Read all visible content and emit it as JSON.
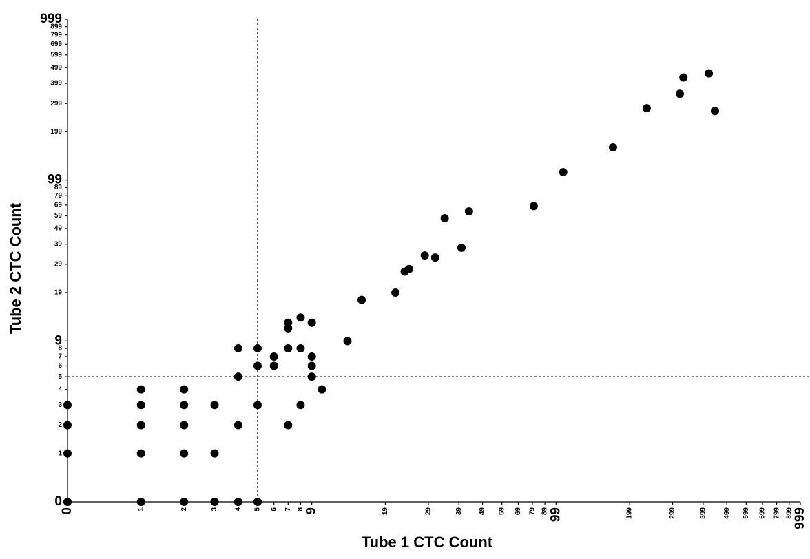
{
  "chart_data": {
    "type": "scatter",
    "x_label": "Tube 1 CTC Count",
    "y_label": "Tube 2 CTC Count",
    "scale": "log1p",
    "color": "#000000",
    "x": [
      0,
      0,
      0,
      0,
      1,
      1,
      1,
      1,
      1,
      2,
      2,
      2,
      2,
      2,
      3,
      3,
      3,
      4,
      4,
      4,
      4,
      5,
      5,
      5,
      5,
      6,
      6,
      7,
      7,
      7,
      7,
      8,
      8,
      8,
      9,
      9,
      9,
      9,
      10,
      13,
      15,
      21,
      23,
      24,
      28,
      31,
      34,
      40,
      43,
      80,
      106,
      170,
      234,
      320,
      331,
      421,
      446
    ],
    "values": [
      3,
      2,
      1,
      0,
      4,
      3,
      2,
      1,
      0,
      4,
      3,
      2,
      1,
      0,
      3,
      1,
      0,
      8,
      5,
      2,
      0,
      8,
      6,
      3,
      0,
      7,
      6,
      12,
      11,
      8,
      2,
      13,
      8,
      3,
      12,
      7,
      6,
      5,
      4,
      9,
      17,
      19,
      26,
      27,
      33,
      32,
      57,
      37,
      63,
      68,
      111,
      159,
      279,
      343,
      434,
      460,
      268
    ],
    "xlim": [
      0,
      999
    ],
    "ylim": [
      0,
      999
    ],
    "xticks": [
      0,
      1,
      2,
      3,
      4,
      5,
      6,
      7,
      8,
      9,
      19,
      29,
      39,
      49,
      59,
      69,
      79,
      89,
      99,
      199,
      299,
      399,
      499,
      599,
      699,
      799,
      899,
      999
    ],
    "yticks": [
      0,
      1,
      2,
      3,
      4,
      5,
      6,
      7,
      8,
      9,
      19,
      29,
      39,
      49,
      59,
      69,
      79,
      89,
      99,
      199,
      299,
      399,
      499,
      599,
      699,
      799,
      899,
      999
    ],
    "reference_lines": {
      "x": 5,
      "y": 5
    }
  }
}
